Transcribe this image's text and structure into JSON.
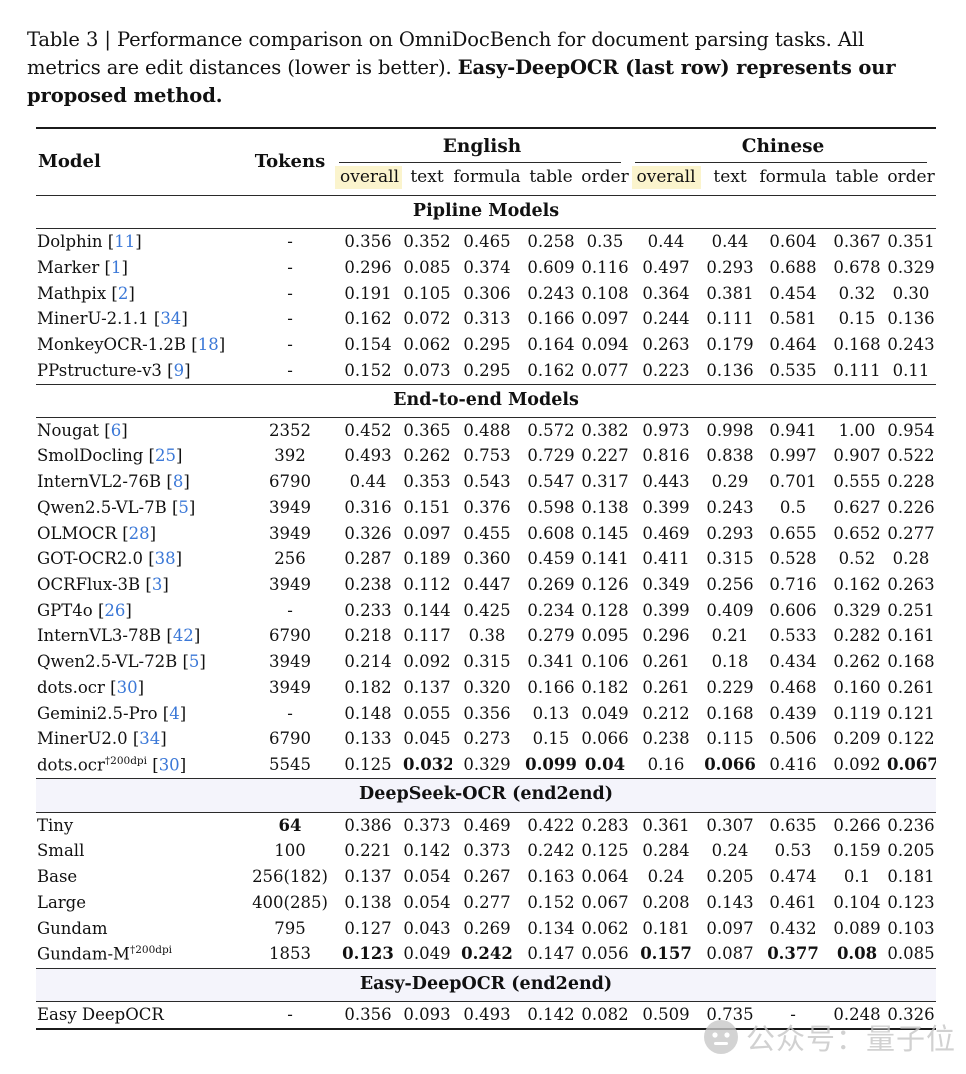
{
  "caption": {
    "normal": "Table 3 | Performance comparison on OmniDocBench for document parsing tasks. All metrics are edit distances (lower is better). ",
    "bold": "Easy-DeepOCR (last row) represents our proposed method."
  },
  "table": {
    "header": {
      "model": "Model",
      "tokens": "Tokens",
      "groups": [
        {
          "label": "English"
        },
        {
          "label": "Chinese"
        }
      ],
      "subcols": [
        "overall",
        "text",
        "formula",
        "table",
        "order"
      ]
    },
    "highlight_color": "#fbf4cd",
    "section_tint_color": "#f4f4fb",
    "citation_color": "#3b78d7",
    "sections": [
      {
        "title": "Pipline Models",
        "tinted": false,
        "rows": [
          {
            "model": "Dolphin",
            "cite": "11",
            "tokens": "-",
            "values": [
              "0.356",
              "0.352",
              "0.465",
              "0.258",
              "0.35",
              "0.44",
              "0.44",
              "0.604",
              "0.367",
              "0.351"
            ],
            "bold": []
          },
          {
            "model": "Marker",
            "cite": "1",
            "tokens": "-",
            "values": [
              "0.296",
              "0.085",
              "0.374",
              "0.609",
              "0.116",
              "0.497",
              "0.293",
              "0.688",
              "0.678",
              "0.329"
            ],
            "bold": []
          },
          {
            "model": "Mathpix",
            "cite": "2",
            "tokens": "-",
            "values": [
              "0.191",
              "0.105",
              "0.306",
              "0.243",
              "0.108",
              "0.364",
              "0.381",
              "0.454",
              "0.32",
              "0.30"
            ],
            "bold": []
          },
          {
            "model": "MinerU-2.1.1",
            "cite": "34",
            "tokens": "-",
            "values": [
              "0.162",
              "0.072",
              "0.313",
              "0.166",
              "0.097",
              "0.244",
              "0.111",
              "0.581",
              "0.15",
              "0.136"
            ],
            "bold": []
          },
          {
            "model": "MonkeyOCR-1.2B",
            "cite": "18",
            "tokens": "-",
            "values": [
              "0.154",
              "0.062",
              "0.295",
              "0.164",
              "0.094",
              "0.263",
              "0.179",
              "0.464",
              "0.168",
              "0.243"
            ],
            "bold": []
          },
          {
            "model": "PPstructure-v3",
            "cite": "9",
            "tokens": "-",
            "values": [
              "0.152",
              "0.073",
              "0.295",
              "0.162",
              "0.077",
              "0.223",
              "0.136",
              "0.535",
              "0.111",
              "0.11"
            ],
            "bold": []
          }
        ]
      },
      {
        "title": "End-to-end Models",
        "tinted": false,
        "rows": [
          {
            "model": "Nougat",
            "cite": "6",
            "tokens": "2352",
            "values": [
              "0.452",
              "0.365",
              "0.488",
              "0.572",
              "0.382",
              "0.973",
              "0.998",
              "0.941",
              "1.00",
              "0.954"
            ],
            "bold": []
          },
          {
            "model": "SmolDocling",
            "cite": "25",
            "tokens": "392",
            "values": [
              "0.493",
              "0.262",
              "0.753",
              "0.729",
              "0.227",
              "0.816",
              "0.838",
              "0.997",
              "0.907",
              "0.522"
            ],
            "bold": []
          },
          {
            "model": "InternVL2-76B",
            "cite": "8",
            "tokens": "6790",
            "values": [
              "0.44",
              "0.353",
              "0.543",
              "0.547",
              "0.317",
              "0.443",
              "0.29",
              "0.701",
              "0.555",
              "0.228"
            ],
            "bold": []
          },
          {
            "model": "Qwen2.5-VL-7B",
            "cite": "5",
            "tokens": "3949",
            "values": [
              "0.316",
              "0.151",
              "0.376",
              "0.598",
              "0.138",
              "0.399",
              "0.243",
              "0.5",
              "0.627",
              "0.226"
            ],
            "bold": []
          },
          {
            "model": "OLMOCR",
            "cite": "28",
            "tokens": "3949",
            "values": [
              "0.326",
              "0.097",
              "0.455",
              "0.608",
              "0.145",
              "0.469",
              "0.293",
              "0.655",
              "0.652",
              "0.277"
            ],
            "bold": []
          },
          {
            "model": "GOT-OCR2.0",
            "cite": "38",
            "tokens": "256",
            "values": [
              "0.287",
              "0.189",
              "0.360",
              "0.459",
              "0.141",
              "0.411",
              "0.315",
              "0.528",
              "0.52",
              "0.28"
            ],
            "bold": []
          },
          {
            "model": "OCRFlux-3B",
            "cite": "3",
            "tokens": "3949",
            "values": [
              "0.238",
              "0.112",
              "0.447",
              "0.269",
              "0.126",
              "0.349",
              "0.256",
              "0.716",
              "0.162",
              "0.263"
            ],
            "bold": []
          },
          {
            "model": "GPT4o",
            "cite": "26",
            "tokens": "-",
            "values": [
              "0.233",
              "0.144",
              "0.425",
              "0.234",
              "0.128",
              "0.399",
              "0.409",
              "0.606",
              "0.329",
              "0.251"
            ],
            "bold": []
          },
          {
            "model": "InternVL3-78B",
            "cite": "42",
            "tokens": "6790",
            "values": [
              "0.218",
              "0.117",
              "0.38",
              "0.279",
              "0.095",
              "0.296",
              "0.21",
              "0.533",
              "0.282",
              "0.161"
            ],
            "bold": []
          },
          {
            "model": "Qwen2.5-VL-72B",
            "cite": "5",
            "tokens": "3949",
            "values": [
              "0.214",
              "0.092",
              "0.315",
              "0.341",
              "0.106",
              "0.261",
              "0.18",
              "0.434",
              "0.262",
              "0.168"
            ],
            "bold": []
          },
          {
            "model": "dots.ocr",
            "cite": "30",
            "tokens": "3949",
            "values": [
              "0.182",
              "0.137",
              "0.320",
              "0.166",
              "0.182",
              "0.261",
              "0.229",
              "0.468",
              "0.160",
              "0.261"
            ],
            "bold": []
          },
          {
            "model": "Gemini2.5-Pro",
            "cite": "4",
            "tokens": "-",
            "values": [
              "0.148",
              "0.055",
              "0.356",
              "0.13",
              "0.049",
              "0.212",
              "0.168",
              "0.439",
              "0.119",
              "0.121"
            ],
            "bold": []
          },
          {
            "model": "MinerU2.0",
            "cite": "34",
            "tokens": "6790",
            "values": [
              "0.133",
              "0.045",
              "0.273",
              "0.15",
              "0.066",
              "0.238",
              "0.115",
              "0.506",
              "0.209",
              "0.122"
            ],
            "bold": []
          },
          {
            "model": "dots.ocr",
            "sup": "†200dpi",
            "cite": "30",
            "tokens": "5545",
            "values": [
              "0.125",
              "0.032",
              "0.329",
              "0.099",
              "0.04",
              "0.16",
              "0.066",
              "0.416",
              "0.092",
              "0.067"
            ],
            "bold": [
              1,
              3,
              4,
              6,
              9
            ]
          }
        ]
      },
      {
        "title": "DeepSeek-OCR (end2end)",
        "tinted": true,
        "rows": [
          {
            "model": "Tiny",
            "tokens": "64",
            "tokens_bold": true,
            "values": [
              "0.386",
              "0.373",
              "0.469",
              "0.422",
              "0.283",
              "0.361",
              "0.307",
              "0.635",
              "0.266",
              "0.236"
            ],
            "bold": []
          },
          {
            "model": "Small",
            "tokens": "100",
            "values": [
              "0.221",
              "0.142",
              "0.373",
              "0.242",
              "0.125",
              "0.284",
              "0.24",
              "0.53",
              "0.159",
              "0.205"
            ],
            "bold": []
          },
          {
            "model": "Base",
            "tokens": "256(182)",
            "values": [
              "0.137",
              "0.054",
              "0.267",
              "0.163",
              "0.064",
              "0.24",
              "0.205",
              "0.474",
              "0.1",
              "0.181"
            ],
            "bold": []
          },
          {
            "model": "Large",
            "tokens": "400(285)",
            "values": [
              "0.138",
              "0.054",
              "0.277",
              "0.152",
              "0.067",
              "0.208",
              "0.143",
              "0.461",
              "0.104",
              "0.123"
            ],
            "bold": []
          },
          {
            "model": "Gundam",
            "tokens": "795",
            "values": [
              "0.127",
              "0.043",
              "0.269",
              "0.134",
              "0.062",
              "0.181",
              "0.097",
              "0.432",
              "0.089",
              "0.103"
            ],
            "bold": []
          },
          {
            "model": "Gundam-M",
            "sup": "†200dpi",
            "tokens": "1853",
            "values": [
              "0.123",
              "0.049",
              "0.242",
              "0.147",
              "0.056",
              "0.157",
              "0.087",
              "0.377",
              "0.08",
              "0.085"
            ],
            "bold": [
              0,
              2,
              5,
              7,
              8
            ]
          }
        ]
      },
      {
        "title": "Easy-DeepOCR (end2end)",
        "tinted": true,
        "rows": [
          {
            "model": "Easy DeepOCR",
            "tokens": "-",
            "values": [
              "0.356",
              "0.093",
              "0.493",
              "0.142",
              "0.082",
              "0.509",
              "0.735",
              "-",
              "0.248",
              "0.326"
            ],
            "bold": []
          }
        ]
      }
    ]
  },
  "watermark": {
    "text": "公众号：量子位"
  }
}
